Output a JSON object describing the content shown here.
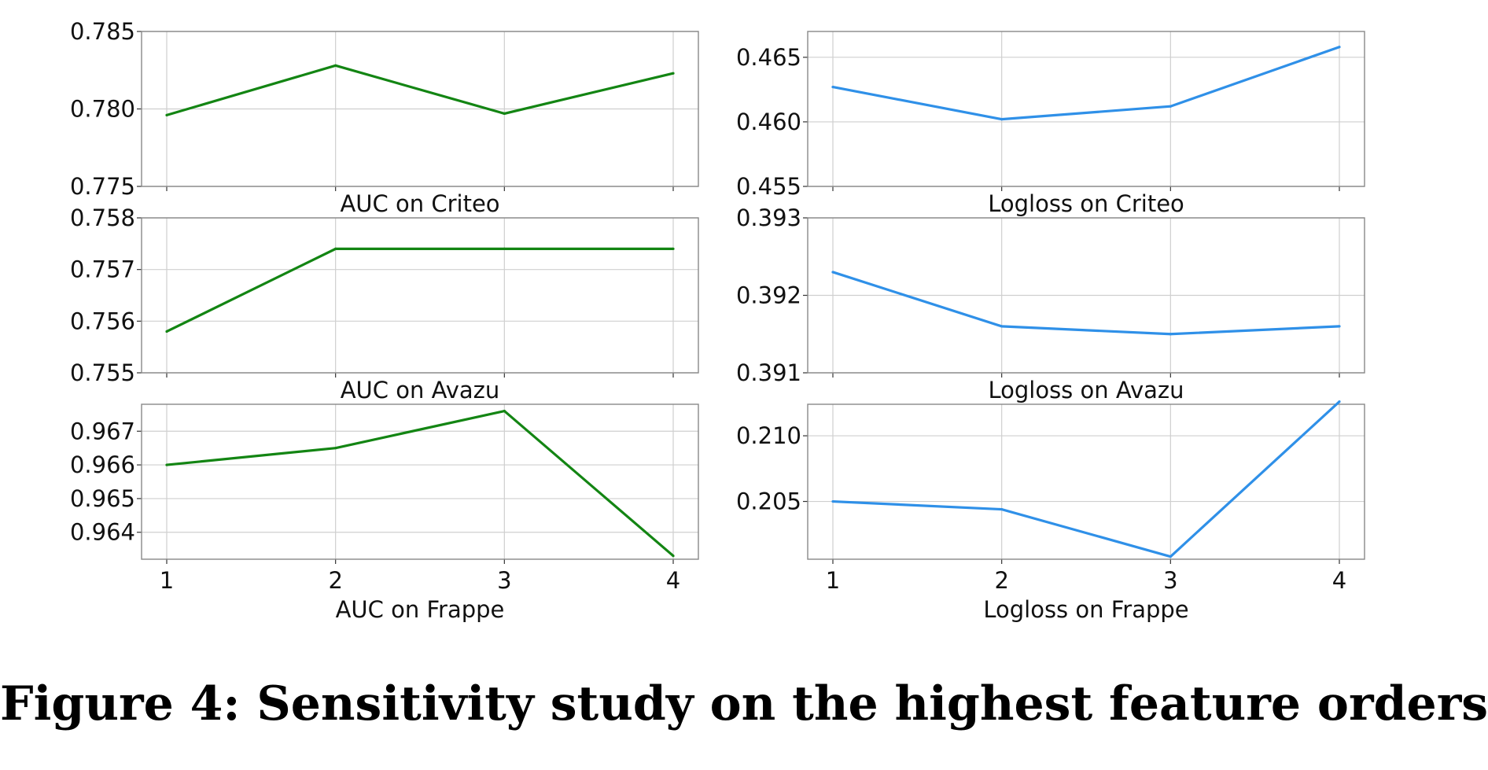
{
  "caption": "Figure 4: Sensitivity study on the highest feature orders",
  "colors": {
    "auc": "#138513",
    "logloss": "#2f90e8",
    "grid": "#cfcfcf",
    "frame": "#888888"
  },
  "chart_data": [
    {
      "type": "line",
      "title": "AUC on Criteo",
      "color": "auc",
      "x": [
        1,
        2,
        3,
        4
      ],
      "values": [
        0.7796,
        0.7828,
        0.7797,
        0.7823
      ],
      "ylim": [
        0.775,
        0.785
      ],
      "yticks": [
        "0.775",
        "0.780",
        "0.785"
      ],
      "ytick_values": [
        0.775,
        0.78,
        0.785
      ],
      "xticks": [],
      "grid": true
    },
    {
      "type": "line",
      "title": "Logloss on Criteo",
      "color": "logloss",
      "x": [
        1,
        2,
        3,
        4
      ],
      "values": [
        0.4627,
        0.4602,
        0.4612,
        0.4658
      ],
      "ylim": [
        0.455,
        0.467
      ],
      "yticks": [
        "0.455",
        "0.460",
        "0.465"
      ],
      "ytick_values": [
        0.455,
        0.46,
        0.465
      ],
      "xticks": [],
      "grid": true
    },
    {
      "type": "line",
      "title": "AUC on Avazu",
      "color": "auc",
      "x": [
        1,
        2,
        3,
        4
      ],
      "values": [
        0.7558,
        0.7574,
        0.7574,
        0.7574
      ],
      "ylim": [
        0.755,
        0.758
      ],
      "yticks": [
        "0.755",
        "0.756",
        "0.757",
        "0.758"
      ],
      "ytick_values": [
        0.755,
        0.756,
        0.757,
        0.758
      ],
      "xticks": [],
      "grid": true
    },
    {
      "type": "line",
      "title": "Logloss on Avazu",
      "color": "logloss",
      "x": [
        1,
        2,
        3,
        4
      ],
      "values": [
        0.3923,
        0.3916,
        0.3915,
        0.3916
      ],
      "ylim": [
        0.391,
        0.393
      ],
      "yticks": [
        "0.391",
        "0.392",
        "0.393"
      ],
      "ytick_values": [
        0.391,
        0.392,
        0.393
      ],
      "xticks": [],
      "grid": true
    },
    {
      "type": "line",
      "title": "AUC on Frappe",
      "color": "auc",
      "x": [
        1,
        2,
        3,
        4
      ],
      "values": [
        0.966,
        0.9665,
        0.9676,
        0.9633
      ],
      "ylim": [
        0.9632,
        0.9678
      ],
      "yticks": [
        "0.964",
        "0.965",
        "0.966",
        "0.967"
      ],
      "ytick_values": [
        0.964,
        0.965,
        0.966,
        0.967
      ],
      "xticks": [
        "1",
        "2",
        "3",
        "4"
      ],
      "grid": true
    },
    {
      "type": "line",
      "title": "Logloss on Frappe",
      "color": "logloss",
      "x": [
        1,
        2,
        3,
        4
      ],
      "values": [
        0.205,
        0.2044,
        0.2008,
        0.2126
      ],
      "ylim": [
        0.2006,
        0.2124
      ],
      "yticks": [
        "0.205",
        "0.210"
      ],
      "ytick_values": [
        0.205,
        0.21
      ],
      "xticks": [
        "1",
        "2",
        "3",
        "4"
      ],
      "grid": true
    }
  ]
}
